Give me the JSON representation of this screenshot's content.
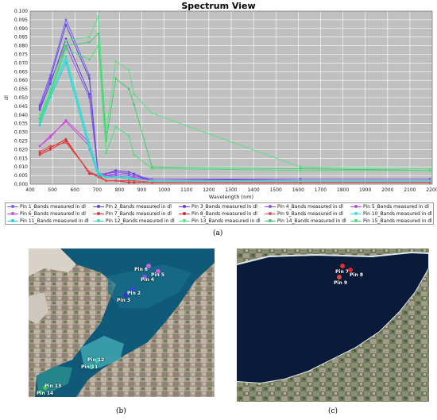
{
  "chart_data": {
    "type": "line",
    "title": "Spectrum View",
    "xlabel": "Wavelength (nm)",
    "ylabel": "dl",
    "xlim": [
      400,
      2200
    ],
    "ylim": [
      0.0,
      0.1
    ],
    "x_ticks": [
      "400",
      "500",
      "600",
      "700",
      "800",
      "900",
      "1000",
      "1100",
      "1200",
      "1300",
      "1400",
      "1500",
      "1600",
      "1700",
      "1800",
      "1900",
      "2000",
      "2100",
      "2200"
    ],
    "y_ticks": [
      "0.000",
      "0.005",
      "0.010",
      "0.015",
      "0.020",
      "0.025",
      "0.030",
      "0.035",
      "0.040",
      "0.045",
      "0.050",
      "0.055",
      "0.060",
      "0.065",
      "0.070",
      "0.075",
      "0.080",
      "0.085",
      "0.090",
      "0.095",
      "0.100"
    ],
    "x": [
      443,
      490,
      560,
      665,
      705,
      740,
      783,
      842,
      865,
      945,
      1610,
      2190
    ],
    "series": [
      {
        "name": "Pin 1_Bands measured in dl",
        "color": "#7a5cff",
        "values": [
          0.046,
          0.063,
          0.095,
          0.063,
          0.005,
          0.005,
          0.006,
          0.005,
          0.004,
          0.002,
          0.002,
          0.002
        ]
      },
      {
        "name": "Pin 2_Bands measured in dl",
        "color": "#5a4bd6",
        "values": [
          0.044,
          0.061,
          0.092,
          0.061,
          0.005,
          0.006,
          0.007,
          0.006,
          0.005,
          0.002,
          0.002,
          0.002
        ]
      },
      {
        "name": "Pin 3_Bands measured in dl",
        "color": "#6a38e0",
        "values": [
          0.043,
          0.058,
          0.084,
          0.052,
          0.005,
          0.006,
          0.008,
          0.007,
          0.006,
          0.002,
          0.003,
          0.003
        ]
      },
      {
        "name": "Pin 4_Bands measured in dl",
        "color": "#8855ee",
        "values": [
          0.045,
          0.06,
          0.08,
          0.05,
          0.006,
          0.006,
          0.007,
          0.006,
          0.005,
          0.003,
          0.003,
          0.003
        ]
      },
      {
        "name": "Pin 5_Bands measured in dl",
        "color": "#b84be6",
        "values": [
          0.022,
          0.027,
          0.037,
          0.024,
          0.006,
          0.005,
          0.005,
          0.004,
          0.004,
          0.002,
          0.002,
          0.002
        ]
      },
      {
        "name": "Pin 6_Bands measured in dl",
        "color": "#d94bd6",
        "values": [
          0.022,
          0.028,
          0.036,
          0.022,
          0.006,
          0.005,
          0.004,
          0.004,
          0.003,
          0.002,
          0.002,
          0.002
        ]
      },
      {
        "name": "Pin 7_Bands measured in dl",
        "color": "#e8303a",
        "values": [
          0.017,
          0.02,
          0.025,
          0.007,
          0.005,
          0.002,
          0.002,
          0.002,
          0.002,
          0.001,
          0.001,
          0.001
        ]
      },
      {
        "name": "Pin 8_Bands measured in dl",
        "color": "#d42a2a",
        "values": [
          0.018,
          0.021,
          0.026,
          0.006,
          0.005,
          0.002,
          0.002,
          0.001,
          0.001,
          0.001,
          0.001,
          0.001
        ]
      },
      {
        "name": "Pin 9_Bands measured in dl",
        "color": "#e05252",
        "values": [
          0.019,
          0.022,
          0.024,
          0.007,
          0.004,
          0.002,
          0.002,
          0.002,
          0.002,
          0.001,
          0.001,
          0.001
        ]
      },
      {
        "name": "Pin 10_Bands measured in dl",
        "color": "#2ee6e6",
        "values": [
          0.036,
          0.052,
          0.072,
          0.022,
          0.006,
          0.004,
          0.004,
          0.004,
          0.003,
          0.002,
          0.002,
          0.002
        ]
      },
      {
        "name": "Pin 11_Bands measured in dl",
        "color": "#20d4d4",
        "values": [
          0.034,
          0.05,
          0.07,
          0.02,
          0.005,
          0.004,
          0.004,
          0.003,
          0.003,
          0.002,
          0.002,
          0.002
        ]
      },
      {
        "name": "Pin 12_Bands measured in dl",
        "color": "#3fd8c8",
        "values": [
          0.035,
          0.051,
          0.074,
          0.024,
          0.007,
          0.004,
          0.004,
          0.004,
          0.003,
          0.002,
          0.002,
          0.002
        ]
      },
      {
        "name": "Pin 13_Bands measured in dl",
        "color": "#5ce08a",
        "values": [
          0.04,
          0.055,
          0.083,
          0.085,
          0.097,
          0.03,
          0.071,
          0.066,
          0.052,
          0.041,
          0.01,
          0.009
        ]
      },
      {
        "name": "Pin 14_Bands measured in dl",
        "color": "#3ecf6a",
        "values": [
          0.038,
          0.053,
          0.08,
          0.082,
          0.087,
          0.025,
          0.061,
          0.055,
          0.046,
          0.01,
          0.009,
          0.008
        ]
      },
      {
        "name": "Pin 15_Bands measured in dl",
        "color": "#4cdf7a",
        "values": [
          0.037,
          0.052,
          0.078,
          0.072,
          0.08,
          0.018,
          0.033,
          0.028,
          0.017,
          0.009,
          0.008,
          0.008
        ]
      }
    ],
    "grid": true,
    "legend_position": "bottom"
  },
  "captions": {
    "a": "(a)",
    "b": "(b)",
    "c": "(c)"
  },
  "map_b": {
    "pins": [
      {
        "label": "Pin 6",
        "color": "#c064e8"
      },
      {
        "label": "Pin 5",
        "color": "#d05ad8"
      },
      {
        "label": "Pin 4",
        "color": "#7a5cff"
      },
      {
        "label": "Pin 2",
        "color": "#3a44e0"
      },
      {
        "label": "Pin 3",
        "color": "#2a3ad0"
      },
      {
        "label": "Pin 12",
        "color": "#32d8d0"
      },
      {
        "label": "Pin 11",
        "color": "#40e0c0"
      },
      {
        "label": "Pin 13",
        "color": "#40d060"
      },
      {
        "label": "Pin 14",
        "color": "#30c050"
      }
    ]
  },
  "map_c": {
    "pins": [
      {
        "label": "Pin 7",
        "color": "#e03030"
      },
      {
        "label": "Pin 8",
        "color": "#d02a2a"
      },
      {
        "label": "Pin 9",
        "color": "#e04848"
      }
    ]
  }
}
